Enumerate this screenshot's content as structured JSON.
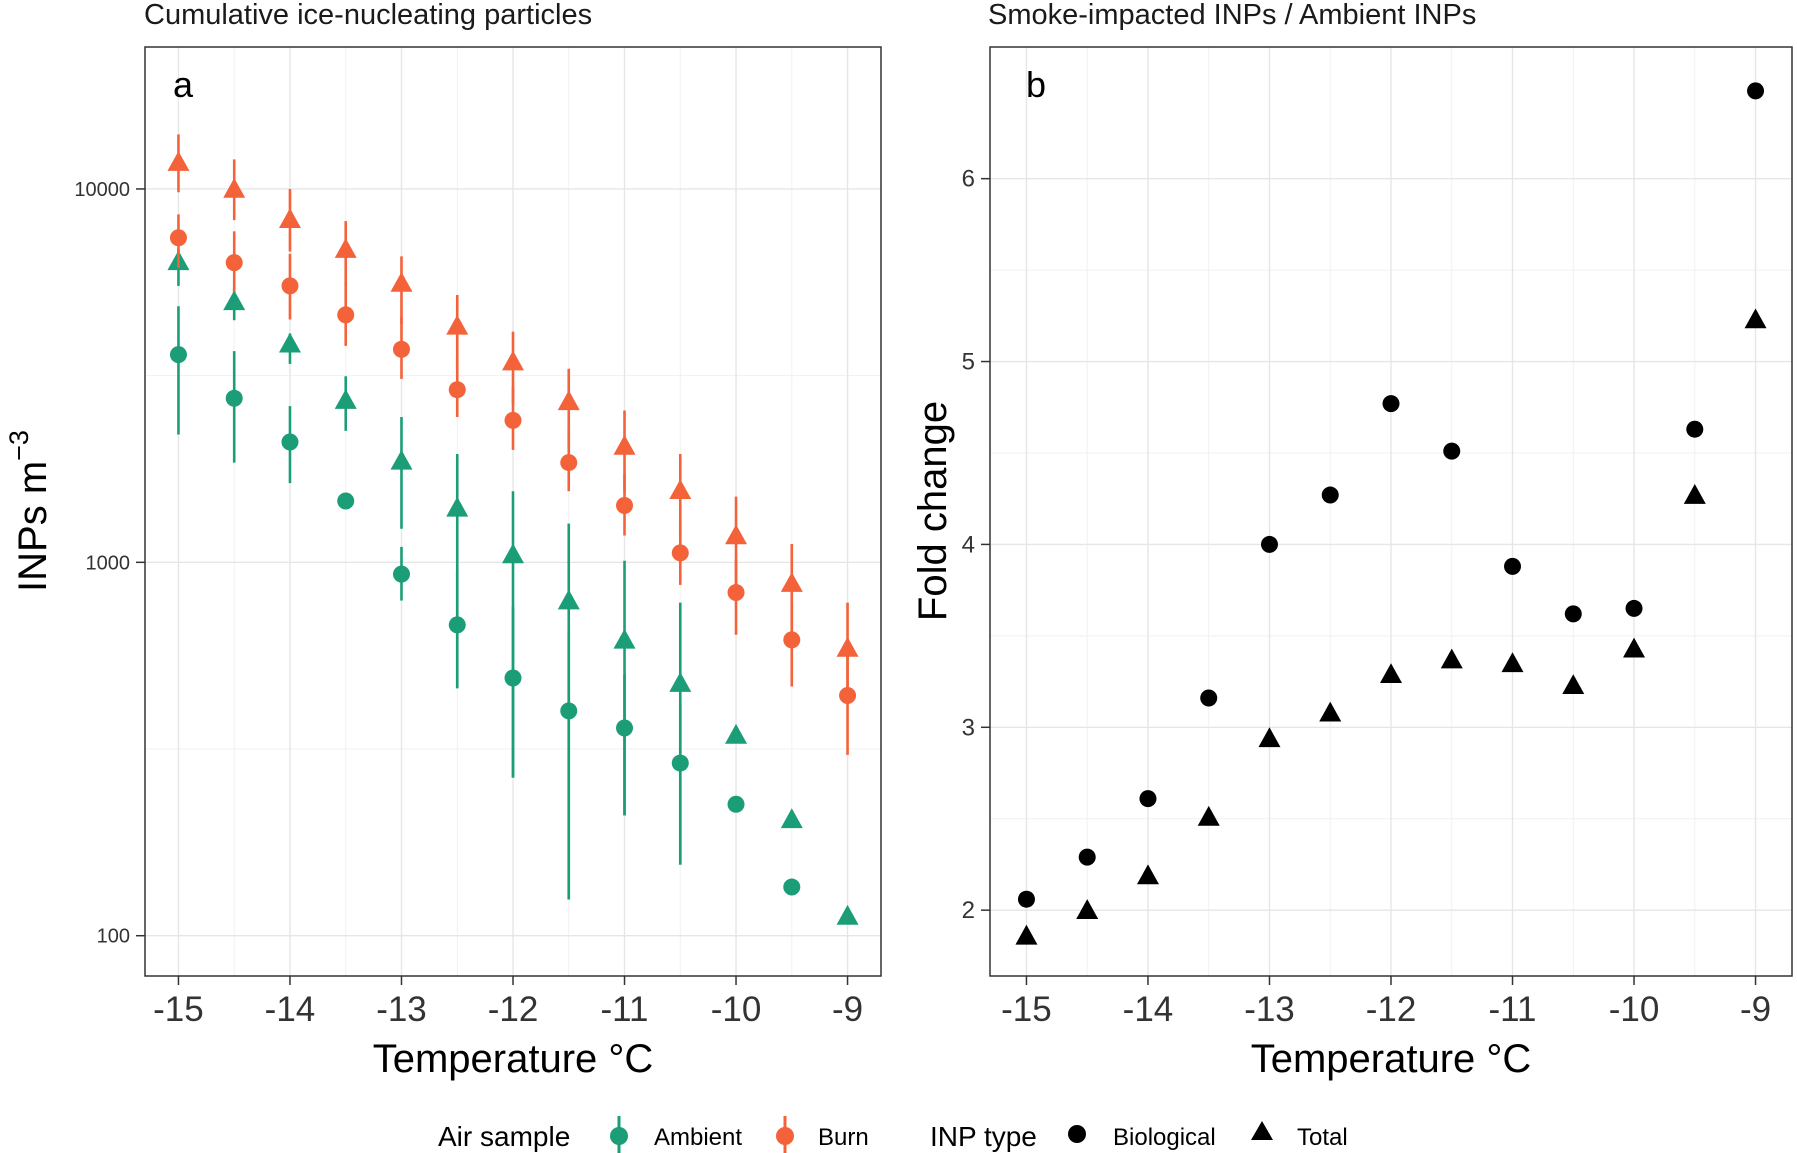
{
  "chart_data": [
    {
      "type": "scatter",
      "title": "Cumulative ice-nucleating particles",
      "panel_label": "a",
      "xlabel": "Temperature °C",
      "ylabel": "INPs  m",
      "ylabel_superscript": "−3",
      "y_scale": "log",
      "xlim": [
        -15.3,
        -8.7
      ],
      "ylim": [
        78,
        24000
      ],
      "x_ticks": [
        -15,
        -14,
        -13,
        -12,
        -11,
        -10,
        -9
      ],
      "y_ticks": [
        100,
        1000,
        10000
      ],
      "y_tick_labels": [
        "100",
        "1000",
        "10000"
      ],
      "grid": true,
      "x": [
        -15,
        -14.5,
        -14,
        -13.5,
        -13,
        -12.5,
        -12,
        -11.5,
        -11,
        -10.5,
        -10,
        -9.5,
        -9
      ],
      "series": [
        {
          "air_sample": "Ambient",
          "inp_type": "Biological",
          "color": "#1b9e77",
          "marker": "circle",
          "values": [
            3600,
            2750,
            2100,
            1460,
            930,
            680,
            490,
            400,
            360,
            290,
            225,
            135,
            null
          ],
          "lower": [
            2200,
            1850,
            1630,
            null,
            790,
            460,
            265,
            125,
            210,
            155,
            null,
            null,
            null
          ],
          "upper": [
            4850,
            3680,
            2620,
            null,
            1100,
            950,
            760,
            650,
            500,
            420,
            null,
            null,
            null
          ]
        },
        {
          "air_sample": "Ambient",
          "inp_type": "Total",
          "color": "#1b9e77",
          "marker": "triangle",
          "values": [
            6400,
            5000,
            3850,
            2720,
            1870,
            1400,
            1050,
            790,
            620,
            475,
            345,
            205,
            113
          ],
          "lower": [
            5500,
            4450,
            3400,
            2250,
            1230,
            460,
            265,
            125,
            210,
            155,
            null,
            null,
            null
          ],
          "upper": [
            6900,
            5450,
            4100,
            3150,
            2450,
            1950,
            1550,
            1270,
            1010,
            780,
            null,
            null,
            null
          ]
        },
        {
          "air_sample": "Burn",
          "inp_type": "Biological",
          "color": "#f4623a",
          "marker": "circle",
          "values": [
            7400,
            6350,
            5500,
            4600,
            3720,
            2900,
            2400,
            1850,
            1420,
            1060,
            830,
            620,
            440
          ],
          "lower": [
            6150,
            5300,
            4470,
            3800,
            3100,
            2450,
            2000,
            1550,
            1180,
            870,
            640,
            465,
            305
          ],
          "upper": [
            8550,
            7700,
            6700,
            5600,
            4550,
            3550,
            2950,
            2300,
            1720,
            1280,
            1020,
            780,
            580
          ]
        },
        {
          "air_sample": "Burn",
          "inp_type": "Total",
          "color": "#f4623a",
          "marker": "triangle",
          "values": [
            11800,
            10000,
            8300,
            6900,
            5600,
            4300,
            3450,
            2700,
            2050,
            1560,
            1180,
            880,
            590
          ],
          "lower": [
            9800,
            8250,
            6800,
            5500,
            4350,
            3300,
            2650,
            2050,
            1550,
            1170,
            880,
            640,
            440
          ],
          "upper": [
            14000,
            12000,
            10000,
            8200,
            6600,
            5200,
            4150,
            3300,
            2550,
            1950,
            1500,
            1120,
            780
          ]
        }
      ]
    },
    {
      "type": "scatter",
      "title": "Smoke-impacted INPs / Ambient INPs",
      "panel_label": "b",
      "xlabel": "Temperature °C",
      "ylabel": "Fold change",
      "xlim": [
        -15.3,
        -8.7
      ],
      "ylim": [
        1.64,
        6.72
      ],
      "x_ticks": [
        -15,
        -14,
        -13,
        -12,
        -11,
        -10,
        -9
      ],
      "y_ticks": [
        2,
        3,
        4,
        5,
        6
      ],
      "grid": true,
      "x": [
        -15,
        -14.5,
        -14,
        -13.5,
        -13,
        -12.5,
        -12,
        -11.5,
        -11,
        -10.5,
        -10,
        -9.5,
        -9
      ],
      "series": [
        {
          "inp_type": "Biological",
          "color": "#000000",
          "marker": "circle",
          "values": [
            2.06,
            2.29,
            2.61,
            3.16,
            4.0,
            4.27,
            4.77,
            4.51,
            3.88,
            3.62,
            3.65,
            4.63,
            6.48
          ]
        },
        {
          "inp_type": "Total",
          "color": "#000000",
          "marker": "triangle",
          "values": [
            1.86,
            2.0,
            2.19,
            2.51,
            2.94,
            3.08,
            3.29,
            3.37,
            3.35,
            3.23,
            3.43,
            4.27,
            5.23
          ]
        }
      ]
    }
  ],
  "legend": {
    "position": "bottom",
    "air_sample": {
      "title": "Air sample",
      "items": [
        {
          "label": "Ambient",
          "color": "#1b9e77"
        },
        {
          "label": "Burn",
          "color": "#f4623a"
        }
      ]
    },
    "inp_type": {
      "title": "INP type",
      "items": [
        {
          "label": "Biological",
          "marker": "circle"
        },
        {
          "label": "Total",
          "marker": "triangle"
        }
      ]
    }
  }
}
